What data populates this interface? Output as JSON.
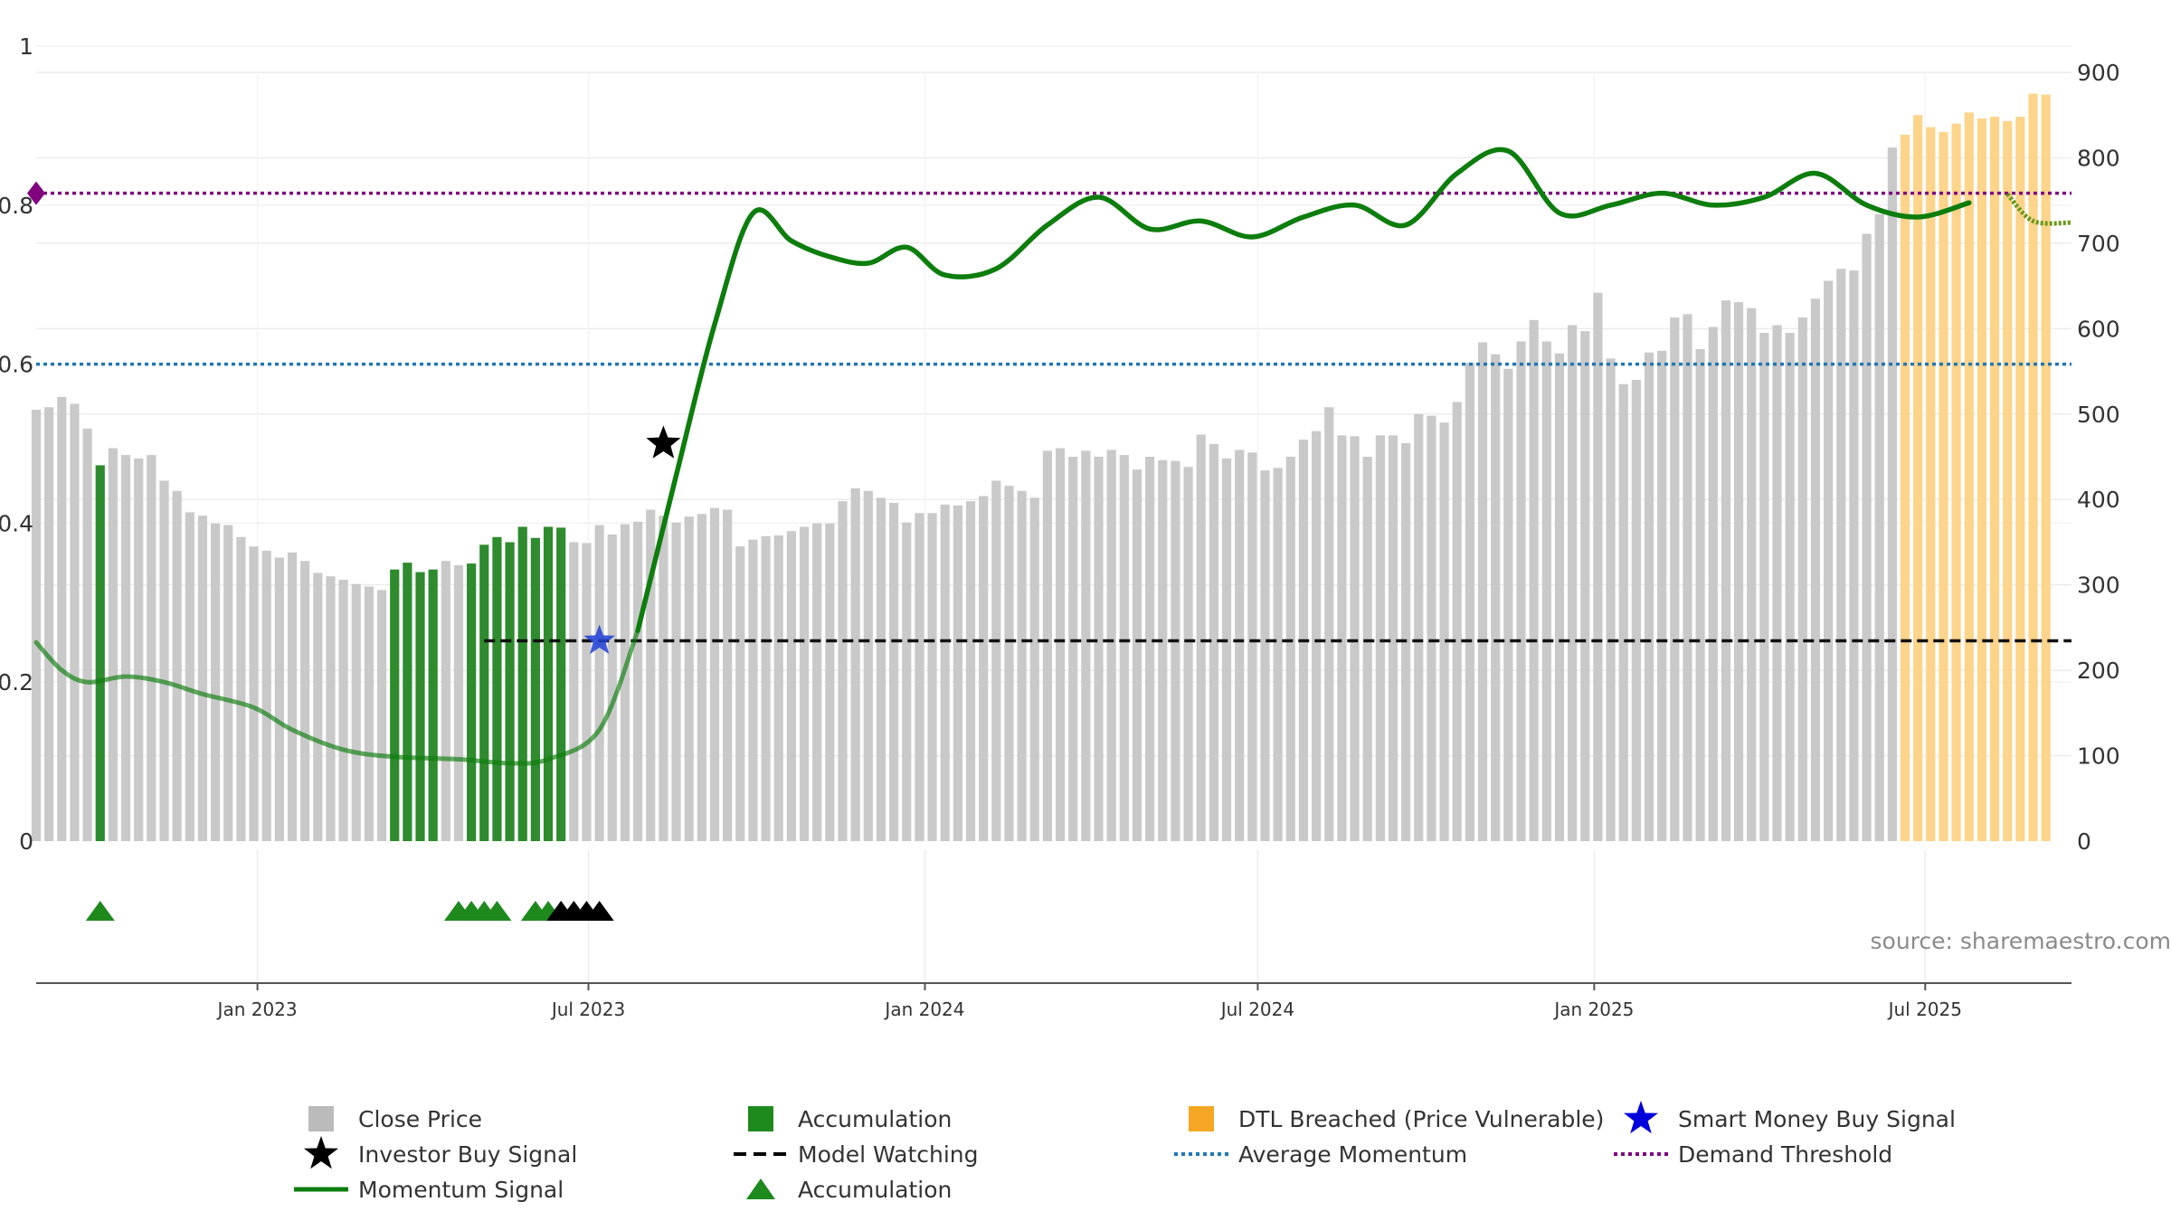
{
  "chart_data": {
    "type": "bar",
    "title": "",
    "source_text": "source: sharemaestro.com",
    "left_axis": {
      "ticks": [
        0,
        0.2,
        0.4,
        0.6,
        0.8,
        1
      ],
      "labels": [
        "0",
        "0.2",
        "0.4",
        "0.6",
        "0.8",
        "1"
      ],
      "range": [
        0,
        0.967
      ]
    },
    "right_axis": {
      "ticks": [
        0,
        100,
        200,
        300,
        400,
        500,
        600,
        700,
        800,
        900
      ],
      "labels": [
        "0",
        "100",
        "200",
        "300",
        "400",
        "500",
        "600",
        "700",
        "800",
        "900"
      ],
      "range": [
        0,
        900
      ]
    },
    "x_axis": {
      "start_date": "2022-09-02",
      "end_date": "2025-09-19",
      "ticks": [
        {
          "label": "Jan 2023",
          "date": "2023-01-01"
        },
        {
          "label": "Jul 2023",
          "date": "2023-07-01"
        },
        {
          "label": "Jan 2024",
          "date": "2024-01-01"
        },
        {
          "label": "Jul 2024",
          "date": "2024-07-01"
        },
        {
          "label": "Jan 2025",
          "date": "2025-01-01"
        },
        {
          "label": "Jul 2025",
          "date": "2025-07-01"
        }
      ]
    },
    "close_price": {
      "start_date": "2022-09-02",
      "interval_days": 7,
      "values": [
        505,
        508,
        520,
        512,
        483,
        440,
        460,
        452,
        448,
        452,
        422,
        410,
        385,
        381,
        372,
        370,
        356,
        345,
        340,
        332,
        338,
        328,
        314,
        310,
        306,
        301,
        298,
        294,
        318,
        326,
        315,
        318,
        328,
        323,
        325,
        347,
        356,
        350,
        368,
        355,
        368,
        367,
        350,
        349,
        370,
        359,
        371,
        374,
        388,
        381,
        373,
        380,
        383,
        390,
        388,
        345,
        353,
        357,
        358,
        363,
        368,
        372,
        372,
        398,
        413,
        410,
        402,
        396,
        373,
        384,
        384,
        394,
        393,
        398,
        404,
        422,
        416,
        410,
        402,
        457,
        460,
        450,
        457,
        450,
        458,
        452,
        435,
        450,
        446,
        445,
        438,
        476,
        465,
        448,
        458,
        455,
        434,
        437,
        450,
        470,
        480,
        508,
        475,
        474,
        450,
        475,
        475,
        466,
        500,
        498,
        490,
        514,
        560,
        584,
        570,
        553,
        585,
        610,
        585,
        571,
        604,
        597,
        642,
        565,
        535,
        540,
        572,
        574,
        613,
        617,
        576,
        602,
        633,
        631,
        624,
        595,
        604,
        595,
        613,
        635,
        656,
        670,
        668,
        711,
        734,
        812,
        827,
        850,
        836,
        830,
        840,
        853,
        846,
        848,
        843,
        848,
        875,
        874
      ],
      "accumulation_indices": [
        5,
        28,
        29,
        30,
        31,
        34,
        35,
        36,
        37,
        38,
        39,
        40,
        41
      ],
      "dtl_start_index": 146
    },
    "momentum_signal": [
      {
        "date": "2022-09-02",
        "value": 0.25
      },
      {
        "date": "2022-09-16",
        "value": 0.215
      },
      {
        "date": "2022-09-30",
        "value": 0.2
      },
      {
        "date": "2022-10-21",
        "value": 0.207
      },
      {
        "date": "2022-11-11",
        "value": 0.2
      },
      {
        "date": "2022-12-02",
        "value": 0.185
      },
      {
        "date": "2022-12-30",
        "value": 0.168
      },
      {
        "date": "2023-01-20",
        "value": 0.14
      },
      {
        "date": "2023-02-17",
        "value": 0.115
      },
      {
        "date": "2023-03-17",
        "value": 0.106
      },
      {
        "date": "2023-04-21",
        "value": 0.103
      },
      {
        "date": "2023-05-19",
        "value": 0.098
      },
      {
        "date": "2023-06-09",
        "value": 0.103
      },
      {
        "date": "2023-07-07",
        "value": 0.14
      },
      {
        "date": "2023-07-28",
        "value": 0.265
      },
      {
        "date": "2023-08-18",
        "value": 0.46
      },
      {
        "date": "2023-09-08",
        "value": 0.65
      },
      {
        "date": "2023-09-29",
        "value": 0.79
      },
      {
        "date": "2023-10-20",
        "value": 0.755
      },
      {
        "date": "2023-11-10",
        "value": 0.735
      },
      {
        "date": "2023-12-01",
        "value": 0.727
      },
      {
        "date": "2023-12-22",
        "value": 0.747
      },
      {
        "date": "2024-01-12",
        "value": 0.712
      },
      {
        "date": "2024-02-09",
        "value": 0.72
      },
      {
        "date": "2024-03-08",
        "value": 0.775
      },
      {
        "date": "2024-04-05",
        "value": 0.81
      },
      {
        "date": "2024-05-03",
        "value": 0.77
      },
      {
        "date": "2024-05-31",
        "value": 0.78
      },
      {
        "date": "2024-06-28",
        "value": 0.76
      },
      {
        "date": "2024-07-26",
        "value": 0.785
      },
      {
        "date": "2024-08-23",
        "value": 0.8
      },
      {
        "date": "2024-09-20",
        "value": 0.775
      },
      {
        "date": "2024-10-18",
        "value": 0.84
      },
      {
        "date": "2024-11-15",
        "value": 0.868
      },
      {
        "date": "2024-12-13",
        "value": 0.79
      },
      {
        "date": "2025-01-10",
        "value": 0.8
      },
      {
        "date": "2025-02-07",
        "value": 0.815
      },
      {
        "date": "2025-03-07",
        "value": 0.8
      },
      {
        "date": "2025-04-04",
        "value": 0.81
      },
      {
        "date": "2025-05-02",
        "value": 0.84
      },
      {
        "date": "2025-05-30",
        "value": 0.8
      },
      {
        "date": "2025-06-27",
        "value": 0.785
      },
      {
        "date": "2025-07-25",
        "value": 0.803
      },
      {
        "date": "2025-08-15",
        "value": 0.814
      },
      {
        "date": "2025-08-29",
        "value": 0.78
      },
      {
        "date": "2025-09-19",
        "value": 0.778
      }
    ],
    "momentum_faded_until": "2023-07-28",
    "momentum_dashed_from": "2025-08-08",
    "model_watching": {
      "value": 0.252,
      "from": "2023-05-05",
      "to": "2025-09-19"
    },
    "average_momentum": 0.6,
    "demand_threshold": 0.815,
    "investor_buy_signal": {
      "date": "2023-08-11",
      "value": 0.5
    },
    "smart_money_buy_signal": {
      "date": "2023-07-07",
      "value": 0.252
    },
    "accumulation_markers": {
      "green_dates": [
        "2022-10-07",
        "2023-04-21",
        "2023-04-28",
        "2023-05-05",
        "2023-05-12",
        "2023-06-02",
        "2023-06-09",
        "2023-06-16",
        "2023-06-23"
      ],
      "black_dates": [
        "2023-06-16",
        "2023-06-23",
        "2023-06-30",
        "2023-07-07"
      ]
    },
    "legend": [
      {
        "label": "Close Price",
        "type": "square",
        "color": "#bbbbbb"
      },
      {
        "label": "Accumulation",
        "type": "square",
        "color": "#1e8a1e"
      },
      {
        "label": "DTL Breached (Price Vulnerable)",
        "type": "square",
        "color": "#f5a623"
      },
      {
        "label": "Smart Money Buy Signal",
        "type": "star",
        "color": "#0000dd"
      },
      {
        "label": "Investor Buy Signal",
        "type": "star",
        "color": "#000000"
      },
      {
        "label": "Model Watching",
        "type": "dash",
        "color": "#000000"
      },
      {
        "label": "Average Momentum",
        "type": "dot",
        "color": "#1f77b4"
      },
      {
        "label": "Demand Threshold",
        "type": "dot",
        "color": "#800080"
      },
      {
        "label": "Momentum Signal",
        "type": "line",
        "color": "#0d7d0d"
      },
      {
        "label": "Accumulation",
        "type": "triangle",
        "color": "#1e8a1e"
      }
    ],
    "colors": {
      "close": "#c9c9c9",
      "accumulation": "#2e8b2e",
      "dtl": "#fcd48a",
      "momentum": "#0d7d0d",
      "average": "#1f77b4",
      "demand": "#800080",
      "smart": "#1f3fd6",
      "investor": "#000000"
    }
  }
}
